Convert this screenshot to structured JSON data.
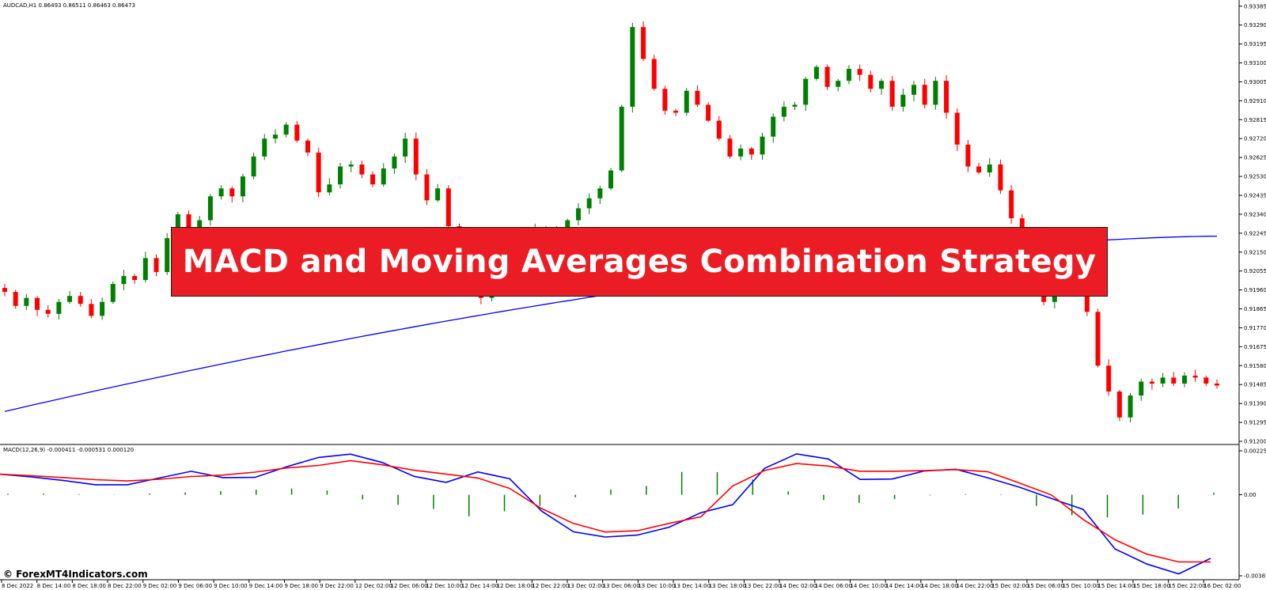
{
  "header": {
    "symbol_line": "AUDCAD,H1  0.86493 0.86511 0.86463 0.86473",
    "macd_line": "MACD(12,26,9) -0.000411 -0.000531 0.000120"
  },
  "banner": {
    "text": "MACD and Moving Averages Combination Strategy"
  },
  "watermark": {
    "text": "© ForexMT4Indicators.com"
  },
  "colors": {
    "bull": "#008000",
    "bear": "#ff0000",
    "ma": "#0000ff",
    "macd": "#0000ff",
    "signal": "#ff0000",
    "histogram": "#008000",
    "banner": "#ec1c24"
  },
  "chart_data": [
    {
      "type": "candlestick",
      "title": "AUDCAD,H1",
      "ylim": [
        0.912,
        0.934
      ],
      "y_ticks": [
        "0.93385",
        "0.93290",
        "0.93195",
        "0.93100",
        "0.93005",
        "0.92910",
        "0.92815",
        "0.92720",
        "0.92625",
        "0.92530",
        "0.92435",
        "0.92340",
        "0.92245",
        "0.92150",
        "0.92055",
        "0.91960",
        "0.91865",
        "0.91770",
        "0.91675",
        "0.91580",
        "0.91485",
        "0.91390",
        "0.91295",
        "0.91200"
      ],
      "x_ticks": [
        "8 Dec 2022",
        "8 Dec 14:00",
        "8 Dec 18:00",
        "8 Dec 22:00",
        "9 Dec 02:00",
        "9 Dec 06:00",
        "9 Dec 10:00",
        "9 Dec 14:00",
        "9 Dec 18:00",
        "9 Dec 22:00",
        "12 Dec 02:00",
        "12 Dec 06:00",
        "12 Dec 10:00",
        "12 Dec 14:00",
        "12 Dec 18:00",
        "12 Dec 22:00",
        "13 Dec 02:00",
        "13 Dec 06:00",
        "13 Dec 10:00",
        "13 Dec 14:00",
        "13 Dec 18:00",
        "13 Dec 22:00",
        "14 Dec 02:00",
        "14 Dec 06:00",
        "14 Dec 10:00",
        "14 Dec 14:00",
        "14 Dec 18:00",
        "14 Dec 22:00",
        "15 Dec 02:00",
        "15 Dec 06:00",
        "15 Dec 10:00",
        "15 Dec 14:00",
        "15 Dec 18:00",
        "15 Dec 22:00",
        "16 Dec 02:00"
      ],
      "close_series": [
        0.9195,
        0.9188,
        0.9192,
        0.9186,
        0.9184,
        0.919,
        0.9193,
        0.9189,
        0.9183,
        0.919,
        0.9199,
        0.9203,
        0.9201,
        0.9212,
        0.9205,
        0.9222,
        0.9234,
        0.9226,
        0.9231,
        0.9243,
        0.9247,
        0.9243,
        0.9253,
        0.9263,
        0.9272,
        0.9274,
        0.9279,
        0.9271,
        0.9265,
        0.9245,
        0.9249,
        0.9258,
        0.9259,
        0.9254,
        0.9249,
        0.9257,
        0.9263,
        0.9272,
        0.9254,
        0.9241,
        0.9247,
        0.9228,
        0.9212,
        0.9198,
        0.9192,
        0.9204,
        0.9213,
        0.9217,
        0.9223,
        0.9227,
        0.9218,
        0.9225,
        0.9231,
        0.9237,
        0.9242,
        0.9247,
        0.9256,
        0.9288,
        0.9328,
        0.9312,
        0.9297,
        0.9286,
        0.9285,
        0.9296,
        0.9289,
        0.9281,
        0.9272,
        0.9263,
        0.9267,
        0.9264,
        0.9273,
        0.9283,
        0.9288,
        0.9289,
        0.9302,
        0.9308,
        0.9298,
        0.9301,
        0.9307,
        0.9304,
        0.9297,
        0.9301,
        0.9288,
        0.9294,
        0.9299,
        0.9289,
        0.9301,
        0.9285,
        0.9269,
        0.9258,
        0.9255,
        0.9259,
        0.9246,
        0.9232,
        0.9216,
        0.9201,
        0.919,
        0.9199,
        0.9215,
        0.9216,
        0.9185,
        0.9158,
        0.9145,
        0.9132,
        0.9143,
        0.915,
        0.9149,
        0.9152,
        0.9149,
        0.9153,
        0.9152,
        0.9149,
        0.9148
      ]
    },
    {
      "type": "line",
      "title": "MACD(12,26,9)",
      "ylim": [
        -0.00387,
        0.00225
      ],
      "y_ticks": [
        "0.002258",
        "0.00",
        "-0.00387"
      ],
      "series": [
        {
          "name": "MACD",
          "values": [
            0.00098,
            0.00085,
            0.00068,
            0.00048,
            0.00048,
            0.0008,
            0.00112,
            0.00082,
            0.00083,
            0.00134,
            0.00178,
            0.00194,
            0.00154,
            0.00088,
            0.00059,
            0.00109,
            0.00076,
            -0.00078,
            -0.00177,
            -0.00202,
            -0.00193,
            -0.00155,
            -0.00086,
            -0.00047,
            0.00126,
            0.00195,
            0.00171,
            0.00073,
            0.00075,
            0.00113,
            0.00122,
            0.00081,
            0.00036,
            -0.00018,
            -0.0007,
            -0.00259,
            -0.00331,
            -0.00378,
            -0.00304
          ]
        },
        {
          "name": "Signal",
          "values": [
            0.00098,
            0.00091,
            0.00082,
            0.00072,
            0.00066,
            0.00074,
            0.00087,
            0.00094,
            0.00108,
            0.00128,
            0.0014,
            0.00163,
            0.00143,
            0.00117,
            0.00099,
            0.0008,
            0.0003,
            -0.00066,
            -0.00137,
            -0.00178,
            -0.00172,
            -0.00137,
            -0.00105,
            0.00042,
            0.00116,
            0.00149,
            0.00137,
            0.00112,
            0.00112,
            0.00115,
            0.0012,
            0.0011,
            0.00056,
            -1e-05,
            -0.00118,
            -0.00215,
            -0.00284,
            -0.00321,
            -0.00321
          ]
        },
        {
          "name": "Histogram",
          "values": [
            5e-05,
            6e-05,
            3e-05,
            1e-05,
            6e-05,
            0.00011,
            0.00018,
            0.00024,
            0.0003,
            0.0002,
            -0.00022,
            -0.00048,
            -0.00068,
            -0.00103,
            -0.00079,
            -0.00053,
            -0.00012,
            0.00025,
            0.00042,
            0.00109,
            0.00108,
            0.00073,
            0.00016,
            -0.00025,
            -0.00039,
            -0.00021,
            -3e-05,
            3e-05,
            -2e-05,
            -0.00053,
            -0.00098,
            -0.00108,
            -0.00095,
            -0.00066,
            0.0001
          ]
        }
      ]
    }
  ]
}
